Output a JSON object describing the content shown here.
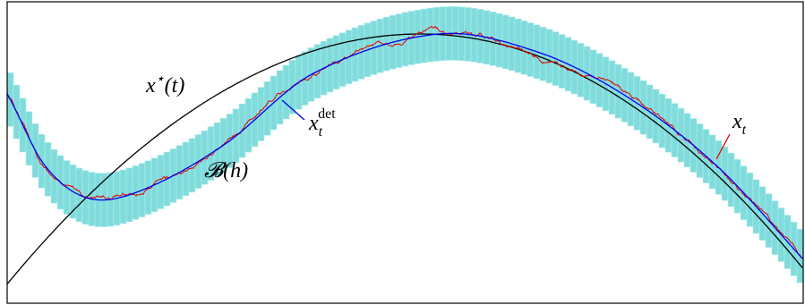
{
  "labels": [
    {
      "main": "x",
      "sup": "⋆",
      "tail": "(t)"
    },
    {
      "main": "x",
      "sub": "t",
      "sup": "det"
    },
    {
      "main": "𝓑(h)"
    },
    {
      "main": "x",
      "sub": "t"
    }
  ]
}
